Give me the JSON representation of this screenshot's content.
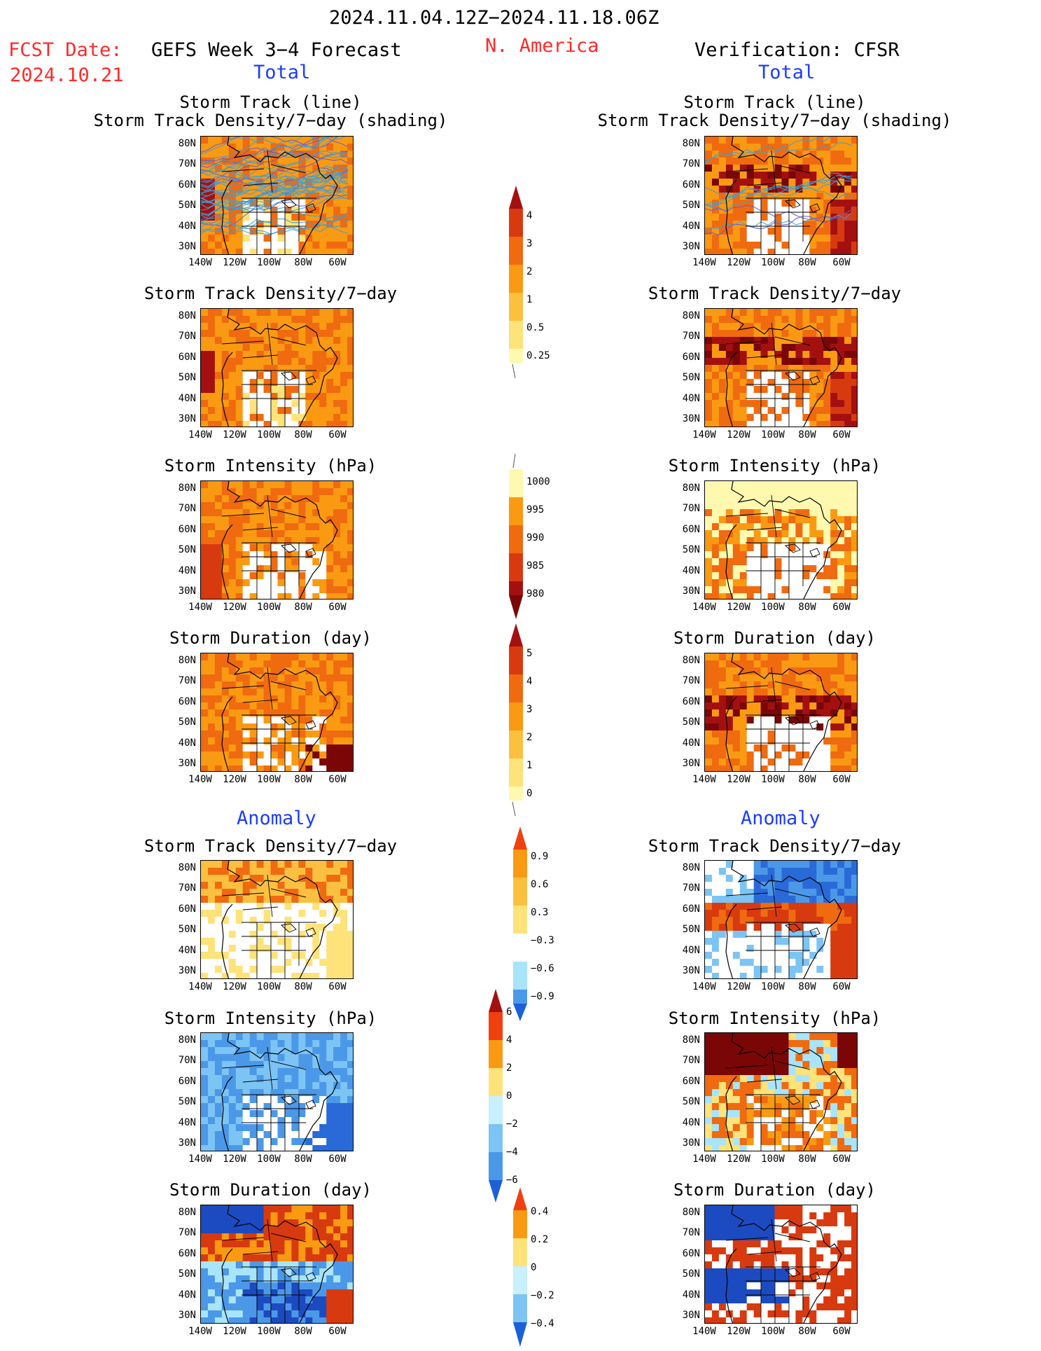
{
  "header": {
    "period": "2024.11.04.12Z−2024.11.18.06Z",
    "fcst_label": "FCST Date:",
    "fcst_date": "2024.10.21",
    "model": "GEFS Week 3−4 Forecast",
    "region": "N. America",
    "verification": "Verification: CFSR",
    "left_section": "Total",
    "right_section": "Total",
    "left_anomaly": "Anomaly",
    "right_anomaly": "Anomaly"
  },
  "panels": {
    "track_line": "Storm Track (line)",
    "track_density_shading": "Storm Track Density/7−day (shading)",
    "track_density": "Storm Track Density/7−day",
    "intensity": "Storm Intensity (hPa)",
    "duration": "Storm Duration (day)"
  },
  "axes": {
    "lat_labels": [
      "80N",
      "70N",
      "60N",
      "50N",
      "40N",
      "30N"
    ],
    "lon_labels": [
      "140W",
      "120W",
      "100W",
      "80W",
      "60W"
    ]
  },
  "colorbars": {
    "density": [
      "4",
      "3",
      "2",
      "1",
      "0.5",
      "0.25"
    ],
    "intensity": [
      "1000",
      "995",
      "990",
      "985",
      "980"
    ],
    "duration": [
      "5",
      "4",
      "3",
      "2",
      "1",
      "0"
    ],
    "density_anom": [
      "0.9",
      "0.6",
      "0.3",
      "−0.3",
      "−0.6",
      "−0.9"
    ],
    "intensity_anom": [
      "6",
      "4",
      "2",
      "0",
      "−2",
      "−4",
      "−6"
    ],
    "duration_anom": [
      "0.4",
      "0.2",
      "0",
      "−0.2",
      "−0.4"
    ]
  },
  "palette": {
    "warm": [
      "#fff9b0",
      "#fee27a",
      "#fbc040",
      "#fa9a12",
      "#f06a10",
      "#d83a10",
      "#a41010",
      "#7a0606"
    ],
    "cool": [
      "#c8f0ff",
      "#a8e4fa",
      "#7cc4f4",
      "#4c98e8",
      "#2a6ad8",
      "#1c4ac0"
    ]
  }
}
